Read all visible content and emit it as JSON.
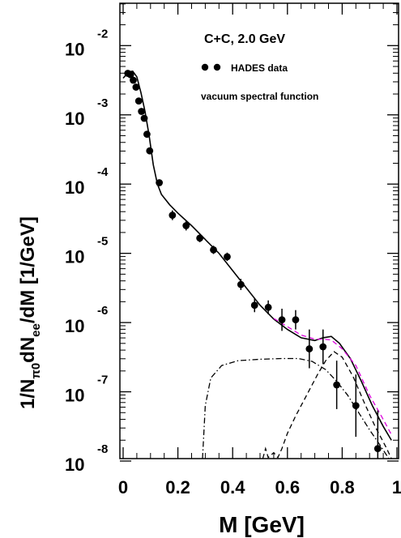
{
  "chart_data": {
    "type": "line",
    "title": "C+C, 2.0 GeV",
    "xlabel": "M [GeV]",
    "ylabel": "1/N_π0 dN_ee/dM [1/GeV]",
    "xlim": [
      0,
      1.0
    ],
    "ylim_log10": [
      -8,
      -1.6
    ],
    "log_y": true,
    "grid": false,
    "legend_position": "top-right",
    "x_ticks": [
      {
        "value": 0,
        "label": "0"
      },
      {
        "value": 0.2,
        "label": "0.2"
      },
      {
        "value": 0.4,
        "label": "0.4"
      },
      {
        "value": 0.6,
        "label": "0.6"
      },
      {
        "value": 0.8,
        "label": "0.8"
      },
      {
        "value": 1.0,
        "label": "1"
      }
    ],
    "y_ticks": [
      {
        "exp": -2,
        "base": "10",
        "exponent": "-2"
      },
      {
        "exp": -3,
        "base": "10",
        "exponent": "-3"
      },
      {
        "exp": -4,
        "base": "10",
        "exponent": "-4"
      },
      {
        "exp": -5,
        "base": "10",
        "exponent": "-5"
      },
      {
        "exp": -6,
        "base": "10",
        "exponent": "-6"
      },
      {
        "exp": -7,
        "base": "10",
        "exponent": "-7"
      },
      {
        "exp": -8,
        "base": "10",
        "exponent": "-8"
      }
    ],
    "legend": [
      {
        "label": "HADES data",
        "style": "markers"
      },
      {
        "label": "vacuum spectral function",
        "style": "none"
      }
    ],
    "series": [
      {
        "name": "HADES data",
        "style": "markers",
        "color": "#000000",
        "points": [
          {
            "x": 0.017,
            "y": -2.4,
            "err": 0.03
          },
          {
            "x": 0.027,
            "y": -2.42,
            "err": 0.03
          },
          {
            "x": 0.037,
            "y": -2.5,
            "err": 0.03
          },
          {
            "x": 0.047,
            "y": -2.6,
            "err": 0.03
          },
          {
            "x": 0.057,
            "y": -2.8,
            "err": 0.03
          },
          {
            "x": 0.067,
            "y": -2.95,
            "err": 0.03
          },
          {
            "x": 0.077,
            "y": -3.05,
            "err": 0.03
          },
          {
            "x": 0.087,
            "y": -3.28,
            "err": 0.03
          },
          {
            "x": 0.097,
            "y": -3.52,
            "err": 0.03
          },
          {
            "x": 0.132,
            "y": -3.98,
            "err": 0.04
          },
          {
            "x": 0.18,
            "y": -4.45,
            "err": 0.07
          },
          {
            "x": 0.23,
            "y": -4.6,
            "err": 0.07
          },
          {
            "x": 0.28,
            "y": -4.78,
            "err": 0.06
          },
          {
            "x": 0.33,
            "y": -4.95,
            "err": 0.06
          },
          {
            "x": 0.38,
            "y": -5.05,
            "err": 0.06
          },
          {
            "x": 0.43,
            "y": -5.45,
            "err": 0.08
          },
          {
            "x": 0.48,
            "y": -5.75,
            "err": 0.1
          },
          {
            "x": 0.53,
            "y": -5.78,
            "err": 0.1
          },
          {
            "x": 0.58,
            "y": -5.96,
            "err": 0.16
          },
          {
            "x": 0.63,
            "y": -5.96,
            "err": 0.14
          },
          {
            "x": 0.68,
            "y": -6.38,
            "err": 0.28
          },
          {
            "x": 0.73,
            "y": -6.35,
            "err": 0.25
          },
          {
            "x": 0.78,
            "y": -6.9,
            "err": 0.35
          },
          {
            "x": 0.85,
            "y": -7.2,
            "err": 0.45
          },
          {
            "x": 0.93,
            "y": -7.82,
            "err": 0.55
          }
        ]
      },
      {
        "name": "",
        "style": "solid",
        "color": "#000000",
        "points": [
          {
            "x": 0.0,
            "y": -2.47
          },
          {
            "x": 0.02,
            "y": -2.38
          },
          {
            "x": 0.035,
            "y": -2.37
          },
          {
            "x": 0.05,
            "y": -2.45
          },
          {
            "x": 0.065,
            "y": -2.68
          },
          {
            "x": 0.08,
            "y": -2.95
          },
          {
            "x": 0.095,
            "y": -3.3
          },
          {
            "x": 0.11,
            "y": -3.72
          },
          {
            "x": 0.125,
            "y": -4.0
          },
          {
            "x": 0.14,
            "y": -4.15
          },
          {
            "x": 0.17,
            "y": -4.3
          },
          {
            "x": 0.2,
            "y": -4.42
          },
          {
            "x": 0.25,
            "y": -4.6
          },
          {
            "x": 0.3,
            "y": -4.8
          },
          {
            "x": 0.35,
            "y": -5.0
          },
          {
            "x": 0.4,
            "y": -5.25
          },
          {
            "x": 0.45,
            "y": -5.5
          },
          {
            "x": 0.5,
            "y": -5.75
          },
          {
            "x": 0.55,
            "y": -5.95
          },
          {
            "x": 0.6,
            "y": -6.1
          },
          {
            "x": 0.65,
            "y": -6.22
          },
          {
            "x": 0.7,
            "y": -6.26
          },
          {
            "x": 0.73,
            "y": -6.22
          },
          {
            "x": 0.76,
            "y": -6.2
          },
          {
            "x": 0.79,
            "y": -6.3
          },
          {
            "x": 0.83,
            "y": -6.52
          },
          {
            "x": 0.87,
            "y": -6.85
          },
          {
            "x": 0.91,
            "y": -7.2
          },
          {
            "x": 0.95,
            "y": -7.5
          },
          {
            "x": 0.98,
            "y": -7.7
          }
        ]
      },
      {
        "name": "",
        "style": "dashed",
        "color": "#dd00dd",
        "points": [
          {
            "x": 0.55,
            "y": -5.94
          },
          {
            "x": 0.6,
            "y": -6.06
          },
          {
            "x": 0.65,
            "y": -6.18
          },
          {
            "x": 0.7,
            "y": -6.24
          },
          {
            "x": 0.73,
            "y": -6.24
          },
          {
            "x": 0.76,
            "y": -6.25
          },
          {
            "x": 0.8,
            "y": -6.38
          },
          {
            "x": 0.85,
            "y": -6.62
          },
          {
            "x": 0.9,
            "y": -7.05
          },
          {
            "x": 0.95,
            "y": -7.4
          },
          {
            "x": 0.98,
            "y": -7.62
          }
        ]
      },
      {
        "name": "",
        "style": "dashdot",
        "color": "#000000",
        "points": [
          {
            "x": 0.29,
            "y": -8.0
          },
          {
            "x": 0.3,
            "y": -7.2
          },
          {
            "x": 0.32,
            "y": -6.8
          },
          {
            "x": 0.36,
            "y": -6.62
          },
          {
            "x": 0.42,
            "y": -6.55
          },
          {
            "x": 0.5,
            "y": -6.53
          },
          {
            "x": 0.58,
            "y": -6.52
          },
          {
            "x": 0.64,
            "y": -6.52
          },
          {
            "x": 0.69,
            "y": -6.56
          },
          {
            "x": 0.74,
            "y": -6.68
          },
          {
            "x": 0.78,
            "y": -6.85
          },
          {
            "x": 0.82,
            "y": -7.05
          },
          {
            "x": 0.86,
            "y": -7.3
          },
          {
            "x": 0.9,
            "y": -7.55
          },
          {
            "x": 0.94,
            "y": -7.78
          },
          {
            "x": 0.97,
            "y": -8.0
          }
        ]
      },
      {
        "name": "",
        "style": "dashed",
        "color": "#000000",
        "points": [
          {
            "x": 0.51,
            "y": -8.0
          },
          {
            "x": 0.52,
            "y": -7.82
          },
          {
            "x": 0.53,
            "y": -7.95
          },
          {
            "x": 0.55,
            "y": -7.88
          },
          {
            "x": 0.565,
            "y": -7.95
          },
          {
            "x": 0.58,
            "y": -7.82
          },
          {
            "x": 0.6,
            "y": -7.6
          },
          {
            "x": 0.63,
            "y": -7.35
          },
          {
            "x": 0.67,
            "y": -7.05
          },
          {
            "x": 0.71,
            "y": -6.75
          },
          {
            "x": 0.74,
            "y": -6.55
          },
          {
            "x": 0.77,
            "y": -6.42
          },
          {
            "x": 0.8,
            "y": -6.5
          },
          {
            "x": 0.84,
            "y": -6.78
          },
          {
            "x": 0.88,
            "y": -7.15
          },
          {
            "x": 0.92,
            "y": -7.5
          },
          {
            "x": 0.96,
            "y": -7.8
          },
          {
            "x": 0.98,
            "y": -8.0
          }
        ]
      }
    ]
  }
}
